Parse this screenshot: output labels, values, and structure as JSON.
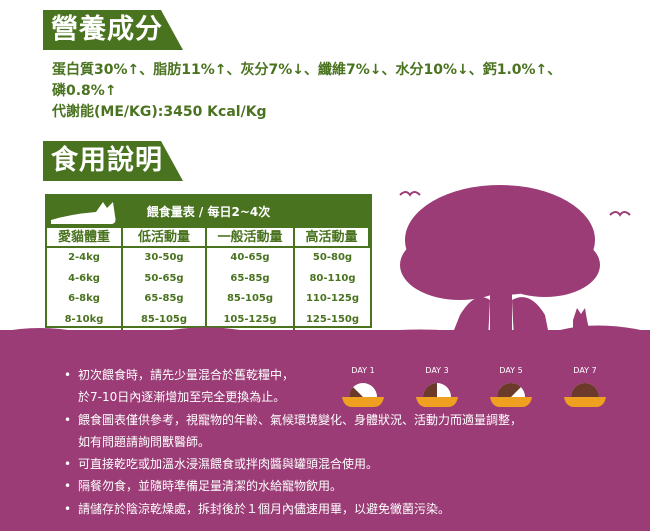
{
  "nutrition": {
    "title": "營養成分",
    "line1": "蛋白質30%↑、脂肪11%↑、灰分7%↓、纖維7%↓、水分10%↓、鈣1.0%↑、",
    "line2": "磷0.8%↑",
    "line3": "代謝能(ME/KG):3450 Kcal/Kg"
  },
  "usage": {
    "title": "食用說明"
  },
  "feeding_table": {
    "title": "餵食量表 / 每日2~4次",
    "headers": [
      "愛貓體重",
      "低活動量",
      "一般活動量",
      "高活動量"
    ],
    "rows": [
      [
        "2-4kg",
        "30-50g",
        "40-65g",
        "50-80g"
      ],
      [
        "4-6kg",
        "50-65g",
        "65-85g",
        "80-110g"
      ],
      [
        "6-8kg",
        "65-85g",
        "85-105g",
        "110-125g"
      ],
      [
        "8-10kg",
        "85-105g",
        "105-125g",
        "125-150g"
      ]
    ]
  },
  "transition": {
    "days": [
      "DAY 1",
      "DAY 3",
      "DAY 5",
      "DAY 7"
    ],
    "new_food_fraction": [
      0.25,
      0.5,
      0.75,
      1.0
    ]
  },
  "instructions": [
    "初次餵食時，請先少量混合於舊乾糧中，",
    "於7-10日內逐漸增加至完全更換為止。",
    "餵食圖表僅供參考，視寵物的年齡、氣候環境變化、身體狀況、活動力而適量調整，",
    "如有問題請詢問獸醫師。",
    "可直接乾吃或加溫水浸濕餵食或拌肉醬與罐頭混合使用。",
    "隔餐勿食，並隨時準備足量清潔的水給寵物飲用。",
    "請儲存於陰涼乾燥處，拆封後於１個月內儘速用畢，以避免黴菌污染。"
  ],
  "colors": {
    "green": "#4a7320",
    "purple": "#9b3c76",
    "bowl": "#f0a020"
  }
}
